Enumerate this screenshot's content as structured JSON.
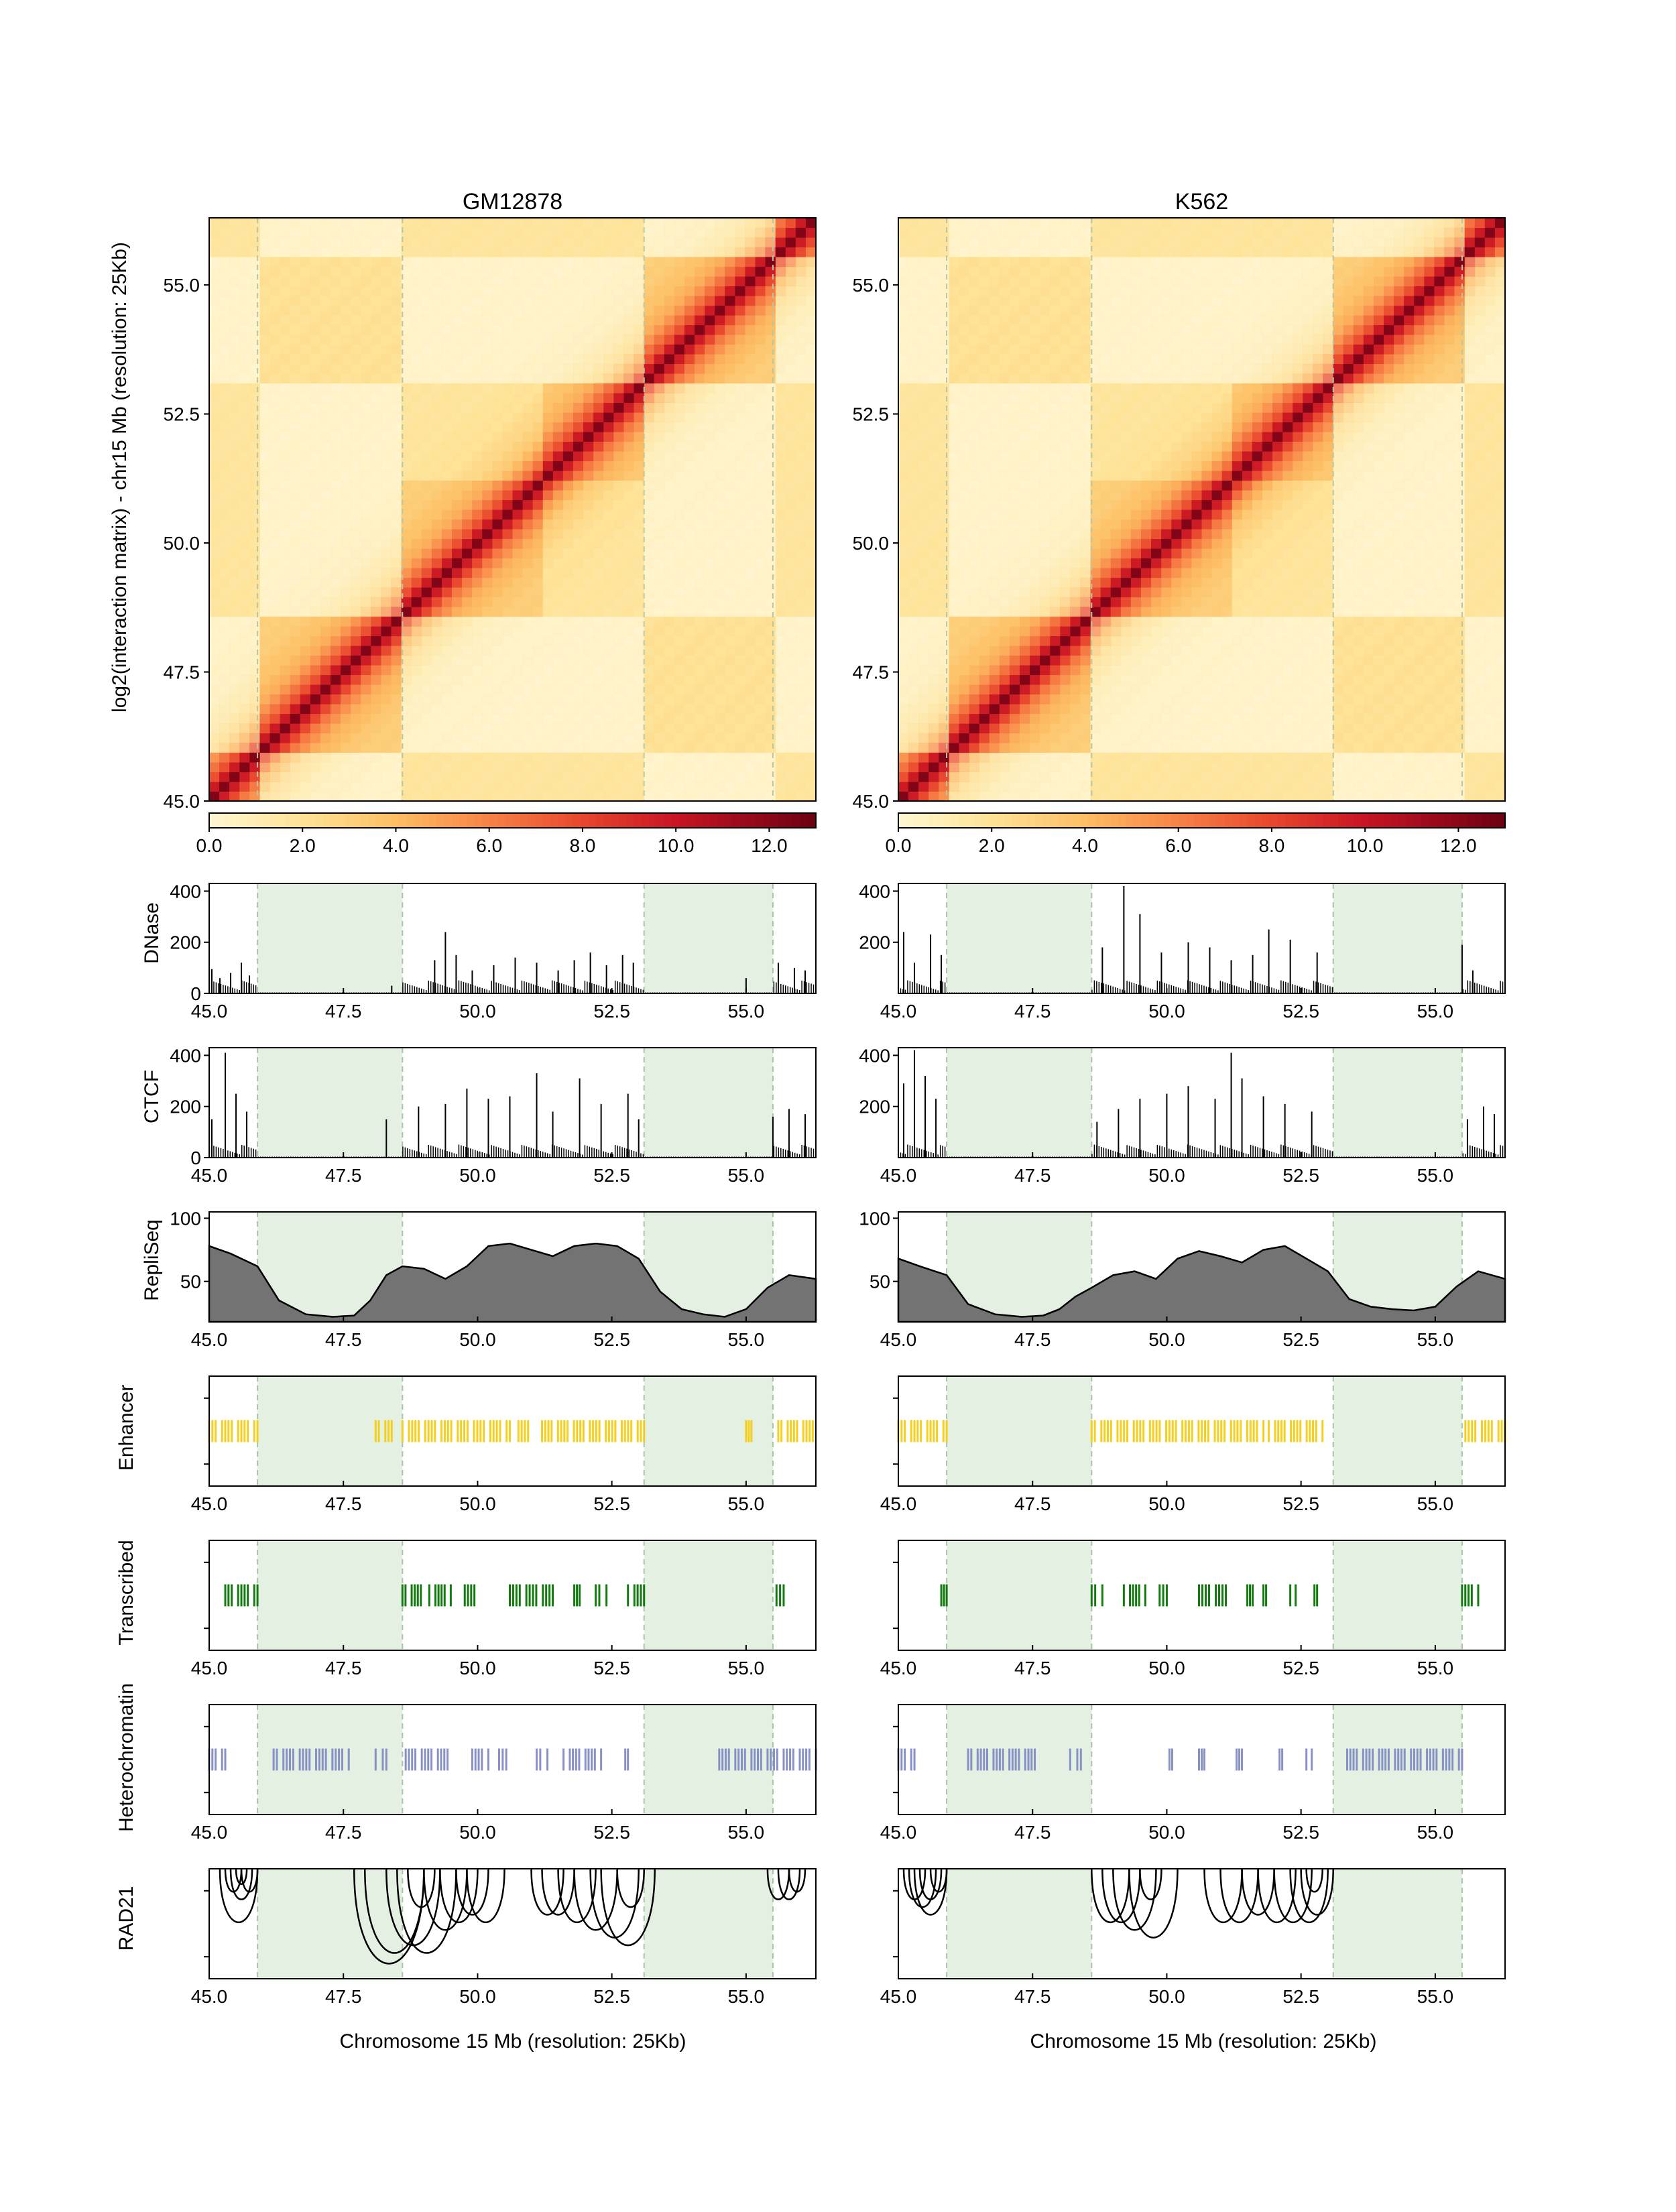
{
  "figure": {
    "y_axis_label": "log2(interaction matrix) - chr15 Mb (resolution: 25Kb)",
    "x_axis_label": "Chromosome 15 Mb (resolution: 25Kb)",
    "track_labels": {
      "dnase": "DNase",
      "ctcf": "CTCF",
      "repliseq": "RepliSeq",
      "enhancer": "Enhancer",
      "transcribed": "Transcribed",
      "heterochromatin": "Heterochromatin",
      "rad21": "RAD21"
    }
  },
  "colors": {
    "shade": "#e3f0e2",
    "shade_border": "#a9c4a7",
    "enhancer": "#f5cf1d",
    "transcribed": "#137a10",
    "heterochromatin": "#8891c6",
    "repliseq_fill": "#737373",
    "heatmap_low": "#fff6cf",
    "heatmap_high": "#6b0012"
  },
  "chart_data": [
    {
      "type": "heatmap",
      "title": "GM12878",
      "xlim": [
        45.0,
        56.3
      ],
      "ylim": [
        45.0,
        56.3
      ],
      "y_ticks": [
        "45.0",
        "47.5",
        "50.0",
        "52.5",
        "55.0"
      ],
      "y_tick_values": [
        45.0,
        47.5,
        50.0,
        52.5,
        55.0
      ],
      "colorbar_ticks": [
        "0.0",
        "2.0",
        "4.0",
        "6.0",
        "8.0",
        "10.0",
        "12.0"
      ],
      "colorbar_range": [
        0.0,
        13.0
      ],
      "shaded_regions": [
        [
          45.9,
          48.6
        ],
        [
          53.1,
          55.5
        ]
      ],
      "tads": [
        [
          45.0,
          45.9
        ],
        [
          45.9,
          48.6
        ],
        [
          48.6,
          51.3
        ],
        [
          51.3,
          53.1
        ],
        [
          53.1,
          55.5
        ],
        [
          55.5,
          56.3
        ]
      ],
      "x_ticks": [
        "45.0",
        "47.5",
        "50.0",
        "52.5",
        "55.0"
      ],
      "x_tick_values": [
        45.0,
        47.5,
        50.0,
        52.5,
        55.0
      ],
      "tracks": {
        "dnase": {
          "y_ticks": [
            "0",
            "200",
            "400"
          ],
          "y_tick_values": [
            0,
            200,
            400
          ],
          "ylim": [
            0,
            430
          ],
          "peaks": [
            [
              45.05,
              95
            ],
            [
              45.2,
              60
            ],
            [
              45.4,
              80
            ],
            [
              45.6,
              120
            ],
            [
              45.75,
              70
            ],
            [
              48.4,
              30
            ],
            [
              49.2,
              130
            ],
            [
              49.4,
              240
            ],
            [
              49.6,
              150
            ],
            [
              49.9,
              90
            ],
            [
              50.3,
              110
            ],
            [
              50.7,
              140
            ],
            [
              51.1,
              120
            ],
            [
              51.5,
              90
            ],
            [
              51.8,
              130
            ],
            [
              52.1,
              160
            ],
            [
              52.4,
              110
            ],
            [
              52.7,
              150
            ],
            [
              52.9,
              120
            ],
            [
              55.0,
              60
            ],
            [
              55.6,
              120
            ],
            [
              55.9,
              100
            ],
            [
              56.1,
              90
            ]
          ]
        },
        "ctcf": {
          "y_ticks": [
            "0",
            "200",
            "400"
          ],
          "y_tick_values": [
            0,
            200,
            400
          ],
          "ylim": [
            0,
            430
          ],
          "peaks": [
            [
              45.05,
              150
            ],
            [
              45.3,
              410
            ],
            [
              45.5,
              250
            ],
            [
              45.7,
              180
            ],
            [
              48.3,
              150
            ],
            [
              48.9,
              200
            ],
            [
              49.4,
              210
            ],
            [
              49.8,
              270
            ],
            [
              50.2,
              230
            ],
            [
              50.6,
              240
            ],
            [
              51.1,
              330
            ],
            [
              51.4,
              180
            ],
            [
              51.9,
              310
            ],
            [
              52.3,
              210
            ],
            [
              52.8,
              250
            ],
            [
              53.0,
              150
            ],
            [
              55.5,
              160
            ],
            [
              55.8,
              190
            ],
            [
              56.1,
              170
            ]
          ]
        },
        "repliseq": {
          "y_ticks": [
            "50",
            "100"
          ],
          "y_tick_values": [
            50,
            100
          ],
          "ylim": [
            18,
            105
          ],
          "x": [
            45.0,
            45.4,
            45.9,
            46.3,
            46.8,
            47.3,
            47.7,
            48.0,
            48.3,
            48.6,
            49.0,
            49.4,
            49.8,
            50.2,
            50.6,
            51.0,
            51.4,
            51.8,
            52.2,
            52.6,
            53.0,
            53.4,
            53.8,
            54.2,
            54.6,
            55.0,
            55.4,
            55.8,
            56.3
          ],
          "y": [
            78,
            72,
            62,
            35,
            24,
            22,
            23,
            35,
            55,
            62,
            60,
            52,
            62,
            78,
            80,
            75,
            70,
            78,
            80,
            78,
            68,
            42,
            28,
            24,
            22,
            28,
            45,
            55,
            52
          ]
        },
        "enhancer": {
          "segments": [
            [
              45.0,
              45.9
            ],
            [
              48.1,
              48.4
            ],
            [
              48.6,
              50.6
            ],
            [
              50.7,
              51.0
            ],
            [
              51.2,
              53.1
            ],
            [
              55.0,
              55.1
            ],
            [
              55.6,
              56.3
            ]
          ]
        },
        "transcribed": {
          "segments": [
            [
              45.3,
              45.9
            ],
            [
              48.6,
              49.0
            ],
            [
              49.1,
              49.5
            ],
            [
              49.7,
              50.0
            ],
            [
              50.6,
              51.4
            ],
            [
              51.8,
              51.9
            ],
            [
              52.2,
              52.4
            ],
            [
              52.8,
              53.1
            ],
            [
              55.5,
              55.7
            ]
          ]
        },
        "heterochromatin": {
          "segments": [
            [
              45.0,
              45.3
            ],
            [
              46.2,
              47.6
            ],
            [
              48.1,
              48.3
            ],
            [
              48.6,
              49.5
            ],
            [
              49.9,
              50.2
            ],
            [
              50.4,
              50.6
            ],
            [
              51.1,
              51.3
            ],
            [
              51.6,
              52.3
            ],
            [
              52.7,
              52.8
            ],
            [
              54.5,
              56.3
            ]
          ]
        },
        "rad21": {
          "loops": [
            [
              45.3,
              45.6
            ],
            [
              45.4,
              45.8
            ],
            [
              45.5,
              45.7
            ],
            [
              45.6,
              45.9
            ],
            [
              45.2,
              45.9
            ],
            [
              47.7,
              49.0
            ],
            [
              47.9,
              49.0
            ],
            [
              48.3,
              49.3
            ],
            [
              48.5,
              49.6
            ],
            [
              48.7,
              49.2
            ],
            [
              49.0,
              49.8
            ],
            [
              49.3,
              50.0
            ],
            [
              49.6,
              50.2
            ],
            [
              49.8,
              50.5
            ],
            [
              51.0,
              51.6
            ],
            [
              51.2,
              51.8
            ],
            [
              51.5,
              52.2
            ],
            [
              51.8,
              52.6
            ],
            [
              52.1,
              53.0
            ],
            [
              52.3,
              53.3
            ],
            [
              52.6,
              53.1
            ],
            [
              55.4,
              55.8
            ],
            [
              55.6,
              56.0
            ],
            [
              55.8,
              56.1
            ]
          ]
        }
      }
    },
    {
      "type": "heatmap",
      "title": "K562",
      "xlim": [
        45.0,
        56.3
      ],
      "ylim": [
        45.0,
        56.3
      ],
      "y_ticks": [
        "45.0",
        "47.5",
        "50.0",
        "52.5",
        "55.0"
      ],
      "y_tick_values": [
        45.0,
        47.5,
        50.0,
        52.5,
        55.0
      ],
      "colorbar_ticks": [
        "0.0",
        "2.0",
        "4.0",
        "6.0",
        "8.0",
        "10.0",
        "12.0"
      ],
      "colorbar_range": [
        0.0,
        13.0
      ],
      "shaded_regions": [
        [
          45.9,
          48.6
        ],
        [
          53.1,
          55.5
        ]
      ],
      "tads": [
        [
          45.0,
          45.9
        ],
        [
          45.9,
          48.6
        ],
        [
          48.6,
          51.3
        ],
        [
          51.3,
          53.1
        ],
        [
          53.1,
          55.5
        ],
        [
          55.5,
          56.3
        ]
      ],
      "x_ticks": [
        "45.0",
        "47.5",
        "50.0",
        "52.5",
        "55.0"
      ],
      "x_tick_values": [
        45.0,
        47.5,
        50.0,
        52.5,
        55.0
      ],
      "tracks": {
        "dnase": {
          "y_ticks": [
            "200",
            "400"
          ],
          "y_tick_values": [
            200,
            400
          ],
          "ylim": [
            0,
            430
          ],
          "peaks": [
            [
              45.1,
              240
            ],
            [
              45.3,
              120
            ],
            [
              45.6,
              230
            ],
            [
              45.8,
              150
            ],
            [
              48.8,
              180
            ],
            [
              49.2,
              420
            ],
            [
              49.5,
              310
            ],
            [
              49.9,
              160
            ],
            [
              50.4,
              200
            ],
            [
              50.8,
              180
            ],
            [
              51.2,
              130
            ],
            [
              51.6,
              150
            ],
            [
              51.9,
              250
            ],
            [
              52.3,
              210
            ],
            [
              52.8,
              160
            ],
            [
              55.5,
              190
            ],
            [
              55.7,
              90
            ]
          ]
        },
        "ctcf": {
          "y_ticks": [
            "200",
            "400"
          ],
          "y_tick_values": [
            200,
            400
          ],
          "ylim": [
            0,
            430
          ],
          "peaks": [
            [
              45.1,
              290
            ],
            [
              45.3,
              420
            ],
            [
              45.5,
              320
            ],
            [
              45.7,
              230
            ],
            [
              48.7,
              140
            ],
            [
              49.1,
              190
            ],
            [
              49.5,
              230
            ],
            [
              50.0,
              250
            ],
            [
              50.4,
              280
            ],
            [
              50.9,
              230
            ],
            [
              51.2,
              410
            ],
            [
              51.4,
              310
            ],
            [
              51.8,
              240
            ],
            [
              52.2,
              210
            ],
            [
              52.7,
              180
            ],
            [
              55.6,
              150
            ],
            [
              55.9,
              200
            ],
            [
              56.1,
              170
            ]
          ]
        },
        "repliseq": {
          "y_ticks": [
            "50",
            "100"
          ],
          "y_tick_values": [
            50,
            100
          ],
          "ylim": [
            18,
            105
          ],
          "x": [
            45.0,
            45.4,
            45.9,
            46.3,
            46.8,
            47.3,
            47.7,
            48.0,
            48.3,
            48.6,
            49.0,
            49.4,
            49.8,
            50.2,
            50.6,
            51.0,
            51.4,
            51.8,
            52.2,
            52.6,
            53.0,
            53.4,
            53.8,
            54.2,
            54.6,
            55.0,
            55.4,
            55.8,
            56.3
          ],
          "y": [
            68,
            62,
            55,
            32,
            24,
            22,
            23,
            28,
            38,
            45,
            55,
            58,
            52,
            68,
            74,
            70,
            65,
            75,
            78,
            68,
            58,
            36,
            30,
            28,
            27,
            30,
            46,
            58,
            52
          ]
        },
        "enhancer": {
          "segments": [
            [
              45.0,
              45.9
            ],
            [
              48.6,
              51.8
            ],
            [
              51.9,
              52.9
            ],
            [
              55.5,
              56.3
            ]
          ]
        },
        "transcribed": {
          "segments": [
            [
              45.8,
              45.9
            ],
            [
              48.6,
              48.8
            ],
            [
              49.2,
              49.6
            ],
            [
              49.8,
              50.0
            ],
            [
              50.6,
              51.1
            ],
            [
              51.5,
              51.6
            ],
            [
              51.8,
              51.9
            ],
            [
              52.3,
              52.4
            ],
            [
              52.7,
              52.8
            ],
            [
              55.5,
              55.8
            ]
          ]
        },
        "heterochromatin": {
          "segments": [
            [
              45.0,
              45.3
            ],
            [
              46.3,
              47.6
            ],
            [
              48.2,
              48.4
            ],
            [
              50.0,
              50.1
            ],
            [
              50.6,
              50.7
            ],
            [
              51.3,
              51.4
            ],
            [
              52.1,
              52.2
            ],
            [
              52.6,
              52.7
            ],
            [
              53.3,
              55.5
            ]
          ]
        },
        "rad21": {
          "loops": [
            [
              45.1,
              45.5
            ],
            [
              45.2,
              45.7
            ],
            [
              45.4,
              45.8
            ],
            [
              45.6,
              45.9
            ],
            [
              45.3,
              45.9
            ],
            [
              48.6,
              49.3
            ],
            [
              48.8,
              49.5
            ],
            [
              49.0,
              49.8
            ],
            [
              49.3,
              50.2
            ],
            [
              49.5,
              49.9
            ],
            [
              50.7,
              51.4
            ],
            [
              51.0,
              51.7
            ],
            [
              51.4,
              52.0
            ],
            [
              51.7,
              52.4
            ],
            [
              52.0,
              52.7
            ],
            [
              52.3,
              53.0
            ],
            [
              52.5,
              53.1
            ],
            [
              52.6,
              52.9
            ]
          ]
        }
      }
    }
  ]
}
